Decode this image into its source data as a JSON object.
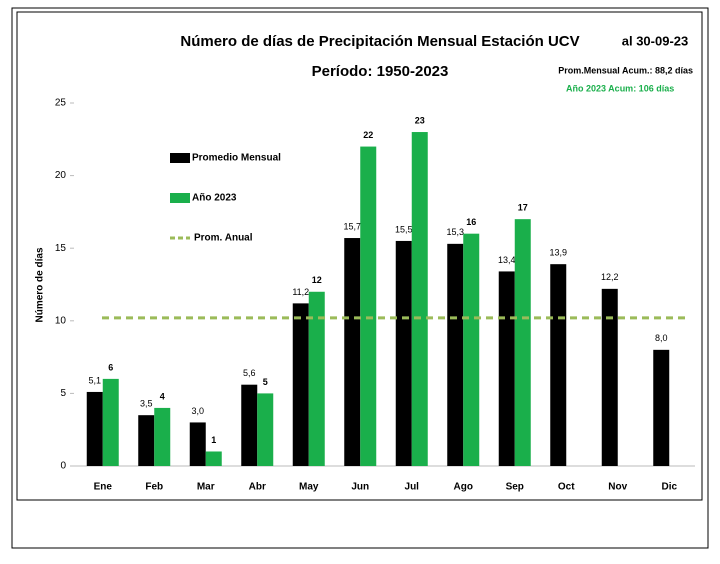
{
  "chart_data": {
    "type": "bar",
    "title": "Número de días de Precipitación Mensual Estación UCV",
    "subtitle": "Período: 1950-2023",
    "date_note": "al 30-09-23",
    "annotations": [
      "Prom.Mensual  Acum.: 88,2 días",
      "Año 2023 Acum: 106 días"
    ],
    "ylabel": "Número de días",
    "categories": [
      "Ene",
      "Feb",
      "Mar",
      "Abr",
      "May",
      "Jun",
      "Jul",
      "Ago",
      "Sep",
      "Oct",
      "Nov",
      "Dic"
    ],
    "series": [
      {
        "name": "Promedio Mensual",
        "color": "#000000",
        "values": [
          5.1,
          3.5,
          3.0,
          5.6,
          11.2,
          15.7,
          15.5,
          15.3,
          13.4,
          13.9,
          12.2,
          8.0
        ],
        "value_labels": [
          "5,1",
          "3,5",
          "3,0",
          "5,6",
          "11,2",
          "15,7",
          "15,5",
          "15,3",
          "13,4",
          "13,9",
          "12,2",
          "8,0"
        ]
      },
      {
        "name": "Año 2023",
        "color": "#1aaf4b",
        "values": [
          6,
          4,
          1,
          5,
          12,
          22,
          23,
          16,
          17,
          null,
          null,
          null
        ]
      }
    ],
    "reference_line": {
      "name": "Prom. Anual",
      "value": 10.2,
      "color": "#9bbb59"
    },
    "ylim": [
      0,
      25
    ],
    "yticks": [
      0,
      5,
      10,
      15,
      20,
      25
    ],
    "grid": false
  }
}
